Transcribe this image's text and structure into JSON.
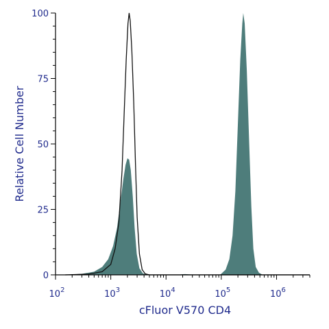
{
  "chart_data": {
    "type": "area",
    "xscale": "log",
    "xlim": [
      100,
      4000000
    ],
    "ylim": [
      0,
      100
    ],
    "xlabel": "cFluor V570 CD4",
    "ylabel": "Relative Cell Number",
    "title": "",
    "x_ticks": [
      {
        "value": 100,
        "base": "10",
        "exp": "2"
      },
      {
        "value": 1000,
        "base": "10",
        "exp": "3"
      },
      {
        "value": 10000,
        "base": "10",
        "exp": "4"
      },
      {
        "value": 100000,
        "base": "10",
        "exp": "5"
      },
      {
        "value": 1000000,
        "base": "10",
        "exp": "6"
      }
    ],
    "y_ticks": [
      {
        "value": 0,
        "label": "0"
      },
      {
        "value": 25,
        "label": "25"
      },
      {
        "value": 50,
        "label": "50"
      },
      {
        "value": 75,
        "label": "75"
      },
      {
        "value": 100,
        "label": "100"
      }
    ],
    "series": [
      {
        "style": "filled",
        "color": "#4e7d7b",
        "points": [
          [
            150,
            0
          ],
          [
            300,
            0.4
          ],
          [
            500,
            1.2
          ],
          [
            700,
            3
          ],
          [
            900,
            6
          ],
          [
            1100,
            11
          ],
          [
            1300,
            18
          ],
          [
            1500,
            28
          ],
          [
            1700,
            37
          ],
          [
            1850,
            42
          ],
          [
            2000,
            44.5
          ],
          [
            2150,
            44
          ],
          [
            2300,
            40
          ],
          [
            2500,
            30
          ],
          [
            2700,
            18
          ],
          [
            2950,
            8
          ],
          [
            3300,
            2.5
          ],
          [
            3800,
            0.6
          ],
          [
            4500,
            0.1
          ],
          [
            6000,
            0
          ],
          [
            15000,
            0
          ],
          [
            22000,
            0.3
          ],
          [
            30000,
            0.1
          ],
          [
            60000,
            0
          ],
          [
            95000,
            0
          ],
          [
            120000,
            2
          ],
          [
            140000,
            6
          ],
          [
            160000,
            15
          ],
          [
            180000,
            32
          ],
          [
            200000,
            58
          ],
          [
            220000,
            82
          ],
          [
            240000,
            96
          ],
          [
            250000,
            100
          ],
          [
            265000,
            96
          ],
          [
            290000,
            78
          ],
          [
            320000,
            50
          ],
          [
            350000,
            26
          ],
          [
            380000,
            10
          ],
          [
            420000,
            3
          ],
          [
            480000,
            0.8
          ],
          [
            560000,
            0
          ]
        ]
      },
      {
        "style": "outline",
        "color": "#111111",
        "points": [
          [
            150,
            0
          ],
          [
            400,
            0.3
          ],
          [
            700,
            1.2
          ],
          [
            1000,
            4
          ],
          [
            1200,
            10
          ],
          [
            1400,
            20
          ],
          [
            1600,
            40
          ],
          [
            1750,
            62
          ],
          [
            1900,
            82
          ],
          [
            2050,
            96
          ],
          [
            2150,
            100
          ],
          [
            2250,
            97
          ],
          [
            2400,
            86
          ],
          [
            2600,
            66
          ],
          [
            2800,
            42
          ],
          [
            3000,
            22
          ],
          [
            3300,
            8
          ],
          [
            3700,
            2
          ],
          [
            4200,
            0.4
          ],
          [
            5000,
            0
          ],
          [
            4000000,
            0
          ]
        ]
      }
    ]
  }
}
